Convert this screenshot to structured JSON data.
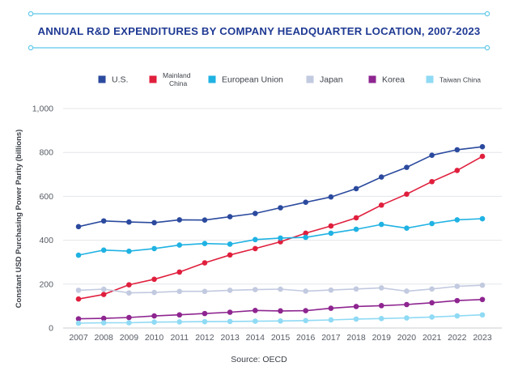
{
  "chart_data": {
    "type": "line",
    "title": "ANNUAL R&D EXPENDITURES BY COMPANY HEADQUARTER LOCATION, 2007-2023",
    "ylabel": "Constant USD Purchasing Power Parity (billions)",
    "xlabel": "",
    "source": "Source: OECD",
    "ylim": [
      0,
      1000
    ],
    "y_ticks": [
      "0",
      "200",
      "400",
      "600",
      "800",
      "1,000"
    ],
    "y_tick_values": [
      0,
      200,
      400,
      600,
      800,
      1000
    ],
    "categories": [
      "2007",
      "2008",
      "2009",
      "2010",
      "2011",
      "2012",
      "2013",
      "2014",
      "2015",
      "2016",
      "2017",
      "2018",
      "2019",
      "2020",
      "2021",
      "2022",
      "2023"
    ],
    "grid": true,
    "legend_position": "top",
    "series": [
      {
        "name": "U.S.",
        "legend_lines": [
          "U.S."
        ],
        "color": "#2b4a9e",
        "values": [
          462,
          488,
          483,
          480,
          493,
          492,
          507,
          522,
          548,
          573,
          597,
          635,
          688,
          732,
          787,
          812,
          826
        ]
      },
      {
        "name": "Mainland China",
        "legend_lines": [
          "Mainland",
          "China"
        ],
        "color": "#e01f3d",
        "values": [
          132,
          153,
          197,
          222,
          255,
          297,
          333,
          362,
          393,
          432,
          465,
          502,
          560,
          610,
          667,
          718,
          782
        ]
      },
      {
        "name": "European Union",
        "legend_lines": [
          "European Union"
        ],
        "color": "#1fb2e3",
        "values": [
          332,
          355,
          350,
          362,
          378,
          385,
          382,
          403,
          410,
          413,
          432,
          450,
          472,
          455,
          476,
          493,
          498
        ]
      },
      {
        "name": "Japan",
        "legend_lines": [
          "Japan"
        ],
        "color": "#c2cae0",
        "values": [
          172,
          177,
          160,
          162,
          167,
          167,
          172,
          175,
          177,
          168,
          173,
          178,
          183,
          168,
          178,
          190,
          195
        ]
      },
      {
        "name": "Korea",
        "legend_lines": [
          "Korea"
        ],
        "color": "#8e2590",
        "values": [
          42,
          44,
          48,
          55,
          60,
          66,
          72,
          80,
          78,
          79,
          90,
          98,
          102,
          107,
          115,
          125,
          130
        ]
      },
      {
        "name": "Taiwan China",
        "legend_lines": [
          "Taiwan China"
        ],
        "color": "#8fdaf4",
        "values": [
          22,
          24,
          24,
          27,
          28,
          29,
          30,
          31,
          32,
          34,
          37,
          41,
          43,
          46,
          50,
          55,
          60
        ]
      }
    ]
  }
}
